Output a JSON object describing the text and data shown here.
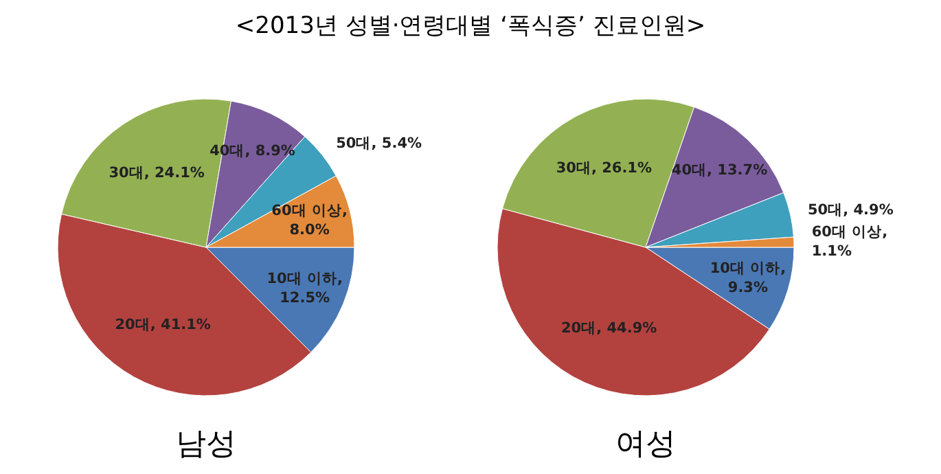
{
  "chart_data": [
    {
      "type": "pie",
      "title": "남성",
      "annotations": [
        "<2013년 성별·연령대별 ‘폭식증’ 진료인원>"
      ],
      "categories": [
        "10대 이하",
        "20대",
        "30대",
        "40대",
        "50대",
        "60대 이상"
      ],
      "values": [
        12.5,
        41.1,
        24.1,
        8.9,
        5.4,
        8.0
      ],
      "value_labels": [
        ", 12.5%",
        ", 41.1%",
        ", 24.1%",
        ", 8.9%",
        ", 5.4%",
        ", 8.0%"
      ],
      "colors": [
        "#4a78b4",
        "#b3423f",
        "#93b153",
        "#7a5c9c",
        "#3ea0bd",
        "#e38a3b"
      ],
      "legend": false
    },
    {
      "type": "pie",
      "title": "여성",
      "categories": [
        "10대 이하",
        "20대",
        "30대",
        "40대",
        "50대",
        "60대 이상"
      ],
      "values": [
        9.3,
        44.9,
        26.1,
        13.7,
        4.9,
        1.1
      ],
      "value_labels": [
        ", 9.3%",
        ", 44.9%",
        ", 26.1%",
        ", 13.7%",
        ", 4.9%",
        ", 1.1%"
      ],
      "colors": [
        "#4a78b4",
        "#b3423f",
        "#93b153",
        "#7a5c9c",
        "#3ea0bd",
        "#e38a3b"
      ],
      "legend": false
    }
  ]
}
